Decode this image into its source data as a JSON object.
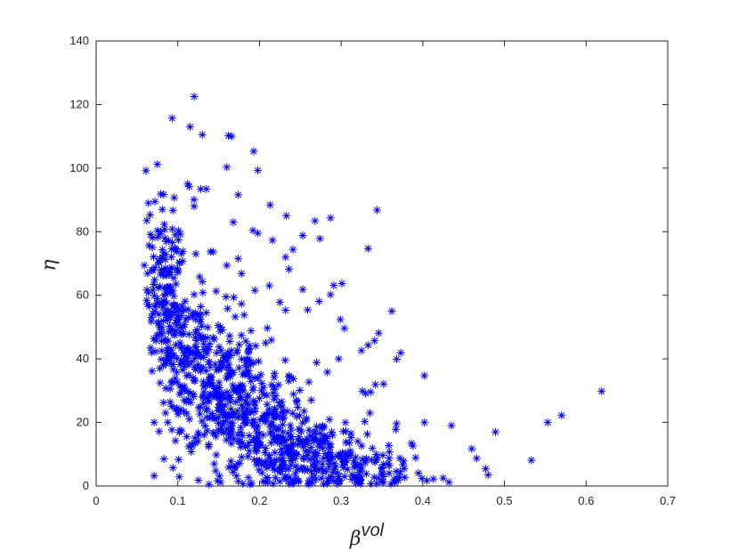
{
  "chart_data": {
    "type": "scatter",
    "title": "",
    "xlabel": "β",
    "xlabel_superscript": "vol",
    "ylabel": "η",
    "xlim": [
      0,
      0.7
    ],
    "ylim": [
      0,
      140
    ],
    "xticks": [
      0,
      0.1,
      0.2,
      0.3,
      0.4,
      0.5,
      0.6,
      0.7
    ],
    "xtick_labels": [
      "0",
      "0.1",
      "0.2",
      "0.3",
      "0.4",
      "0.5",
      "0.6",
      "0.7"
    ],
    "yticks": [
      0,
      20,
      40,
      60,
      80,
      100,
      120,
      140
    ],
    "ytick_labels": [
      "0",
      "20",
      "40",
      "60",
      "80",
      "100",
      "120",
      "140"
    ],
    "grid": false,
    "legend": false,
    "marker": "asterisk",
    "marker_color": "#0000ff",
    "point_count_estimated": 1000,
    "series": [
      {
        "points": [
          [
            0.12,
            122.5
          ],
          [
            0.093,
            115.7
          ],
          [
            0.115,
            113.0
          ],
          [
            0.13,
            110.5
          ],
          [
            0.162,
            110.2
          ],
          [
            0.166,
            110.0
          ],
          [
            0.193,
            105.3
          ],
          [
            0.061,
            99.2
          ],
          [
            0.075,
            101.2
          ],
          [
            0.16,
            100.3
          ],
          [
            0.198,
            99.3
          ],
          [
            0.112,
            95.0
          ],
          [
            0.114,
            94.2
          ],
          [
            0.079,
            91.8
          ],
          [
            0.128,
            93.4
          ],
          [
            0.135,
            93.4
          ],
          [
            0.174,
            91.6
          ],
          [
            0.064,
            89.0
          ],
          [
            0.072,
            89.5
          ],
          [
            0.213,
            88.4
          ],
          [
            0.344,
            86.8
          ],
          [
            0.081,
            87.0
          ],
          [
            0.12,
            88.0
          ],
          [
            0.094,
            86.7
          ],
          [
            0.233,
            85.0
          ],
          [
            0.287,
            84.3
          ],
          [
            0.268,
            83.4
          ],
          [
            0.168,
            83.0
          ],
          [
            0.062,
            83.5
          ],
          [
            0.066,
            85.3
          ],
          [
            0.079,
            80.0
          ],
          [
            0.084,
            80.7
          ],
          [
            0.192,
            80.4
          ],
          [
            0.198,
            79.5
          ],
          [
            0.253,
            78.8
          ],
          [
            0.274,
            77.8
          ],
          [
            0.216,
            77.3
          ],
          [
            0.333,
            74.7
          ],
          [
            0.097,
            74.8
          ],
          [
            0.14,
            73.7
          ],
          [
            0.122,
            73.0
          ],
          [
            0.232,
            72.0
          ],
          [
            0.241,
            74.4
          ],
          [
            0.174,
            71.5
          ],
          [
            0.059,
            69.4
          ],
          [
            0.077,
            70.5
          ],
          [
            0.085,
            68.6
          ],
          [
            0.236,
            68.2
          ],
          [
            0.106,
            70.7
          ],
          [
            0.16,
            69.4
          ],
          [
            0.178,
            66.8
          ],
          [
            0.064,
            60.8
          ],
          [
            0.13,
            64.3
          ],
          [
            0.301,
            63.7
          ],
          [
            0.291,
            63.1
          ],
          [
            0.212,
            63.0
          ],
          [
            0.147,
            61.3
          ],
          [
            0.253,
            61.8
          ],
          [
            0.287,
            60.2
          ],
          [
            0.225,
            57.8
          ],
          [
            0.065,
            56.5
          ],
          [
            0.273,
            58.1
          ],
          [
            0.178,
            57.3
          ],
          [
            0.161,
            55.8
          ],
          [
            0.259,
            55.4
          ],
          [
            0.362,
            55.0
          ],
          [
            0.232,
            55.3
          ],
          [
            0.122,
            52.4
          ],
          [
            0.097,
            54.8
          ],
          [
            0.299,
            52.4
          ],
          [
            0.107,
            50.0
          ],
          [
            0.304,
            49.6
          ],
          [
            0.152,
            48.7
          ],
          [
            0.178,
            47.4
          ],
          [
            0.346,
            48.1
          ],
          [
            0.341,
            45.7
          ],
          [
            0.333,
            44.3
          ],
          [
            0.373,
            41.9
          ],
          [
            0.368,
            39.9
          ],
          [
            0.325,
            42.6
          ],
          [
            0.297,
            40.0
          ],
          [
            0.27,
            38.8
          ],
          [
            0.402,
            34.7
          ],
          [
            0.342,
            31.9
          ],
          [
            0.352,
            32.1
          ],
          [
            0.326,
            29.9
          ],
          [
            0.33,
            29.1
          ],
          [
            0.619,
            29.8
          ],
          [
            0.57,
            22.2
          ],
          [
            0.553,
            20.0
          ],
          [
            0.402,
            20.0
          ],
          [
            0.435,
            19.0
          ],
          [
            0.368,
            19.6
          ],
          [
            0.367,
            17.8
          ],
          [
            0.489,
            17.0
          ],
          [
            0.332,
            16.3
          ],
          [
            0.386,
            13.4
          ],
          [
            0.388,
            12.6
          ],
          [
            0.46,
            11.7
          ],
          [
            0.466,
            8.7
          ],
          [
            0.533,
            8.1
          ],
          [
            0.477,
            5.4
          ],
          [
            0.48,
            3.5
          ],
          [
            0.425,
            2.5
          ],
          [
            0.432,
            1.2
          ],
          [
            0.413,
            2.2
          ],
          [
            0.405,
            1.7
          ],
          [
            0.399,
            2.4
          ],
          [
            0.378,
            2.7
          ],
          [
            0.371,
            3.0
          ],
          [
            0.366,
            1.0
          ],
          [
            0.083,
            8.5
          ],
          [
            0.094,
            5.7
          ],
          [
            0.071,
            3.2
          ],
          [
            0.071,
            20.0
          ],
          [
            0.085,
            23.0
          ],
          [
            0.097,
            24.2
          ],
          [
            0.073,
            42.3
          ],
          [
            0.068,
            42.0
          ],
          [
            0.08,
            45.6
          ],
          [
            0.078,
            37.0
          ],
          [
            0.092,
            38.4
          ],
          [
            0.087,
            41.1
          ],
          [
            0.093,
            32.9
          ],
          [
            0.104,
            29.5
          ]
        ],
        "dense_clusters": [
          {
            "x_mean": 0.085,
            "x_sd": 0.012,
            "y_mean": 62,
            "y_sd": 12,
            "count": 140
          },
          {
            "x_mean": 0.115,
            "x_sd": 0.018,
            "y_mean": 42,
            "y_sd": 12,
            "count": 150
          },
          {
            "x_mean": 0.16,
            "x_sd": 0.025,
            "y_mean": 28,
            "y_sd": 12,
            "count": 210
          },
          {
            "x_mean": 0.21,
            "x_sd": 0.035,
            "y_mean": 17,
            "y_sd": 9,
            "count": 260
          },
          {
            "x_mean": 0.27,
            "x_sd": 0.04,
            "y_mean": 9,
            "y_sd": 6,
            "count": 170
          },
          {
            "x_mean": 0.33,
            "x_sd": 0.035,
            "y_mean": 5,
            "y_sd": 4,
            "count": 70
          }
        ]
      }
    ]
  }
}
